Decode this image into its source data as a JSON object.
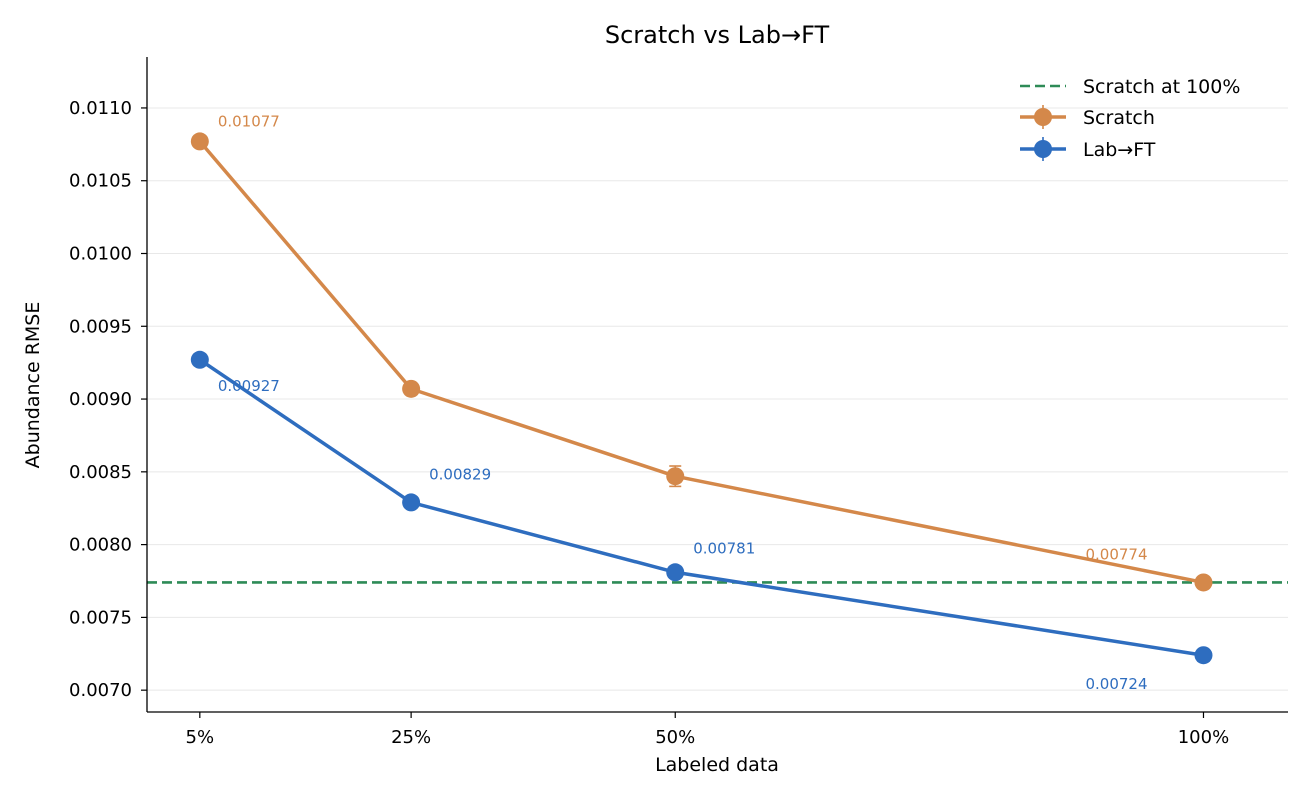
{
  "chart_data": {
    "type": "line",
    "title": "Scratch vs Lab→FT",
    "xlabel": "Labeled data",
    "ylabel": "Abundance RMSE",
    "x": [
      5,
      25,
      50,
      100
    ],
    "x_tick_labels": [
      "5%",
      "25%",
      "50%",
      "100%"
    ],
    "ylim": [
      0.00685,
      0.01135
    ],
    "y_ticks": [
      0.007,
      0.0075,
      0.008,
      0.0085,
      0.009,
      0.0095,
      0.01,
      0.0105,
      0.011
    ],
    "y_tick_labels": [
      "0.0070",
      "0.0075",
      "0.0080",
      "0.0085",
      "0.0090",
      "0.0095",
      "0.0100",
      "0.0105",
      "0.0110"
    ],
    "grid": "horizontal",
    "legend_position": "top-right",
    "series": [
      {
        "name": "Scratch",
        "color": "#D4884A",
        "values": [
          0.01077,
          0.00907,
          0.00847,
          0.00774
        ],
        "errors": [
          4e-05,
          4e-05,
          7e-05,
          4e-05
        ],
        "value_labels": [
          "0.01077",
          "",
          "",
          "0.00774"
        ]
      },
      {
        "name": "Lab→FT",
        "color": "#2E6DBF",
        "values": [
          0.00927,
          0.00829,
          0.00781,
          0.00724
        ],
        "errors": [
          3e-05,
          3e-05,
          3e-05,
          3e-05
        ],
        "value_labels": [
          "0.00927",
          "0.00829",
          "0.00781",
          "0.00724"
        ]
      }
    ],
    "reference_line": {
      "name": "Scratch at 100%",
      "value": 0.00774,
      "color": "#2E8B57",
      "style": "dashed"
    }
  }
}
